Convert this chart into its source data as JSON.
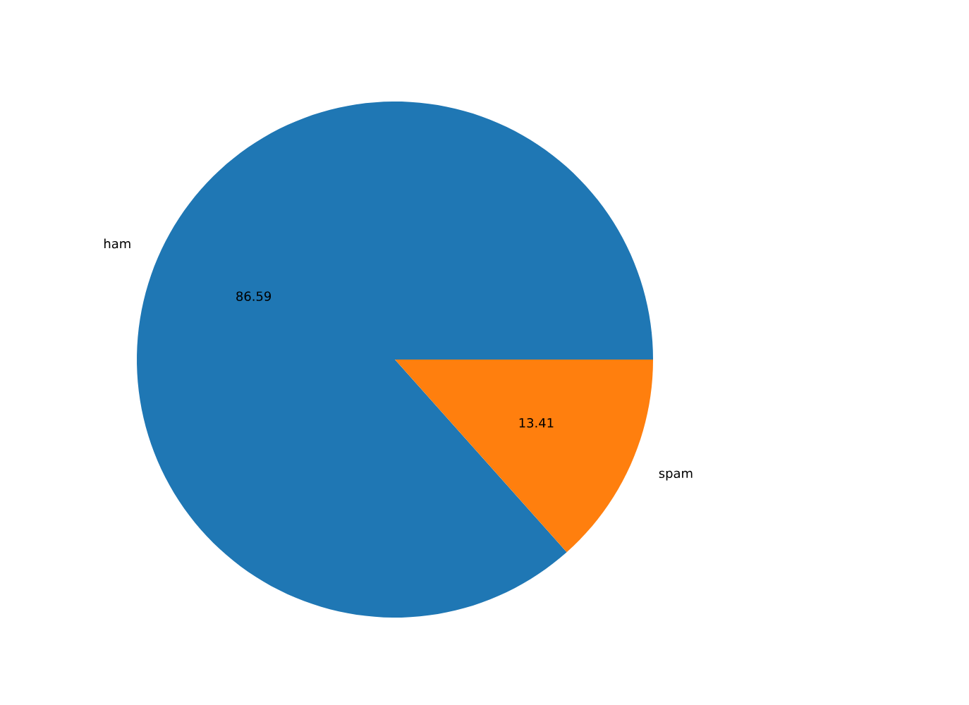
{
  "chart_data": {
    "type": "pie",
    "categories": [
      "ham",
      "spam"
    ],
    "values": [
      86.59,
      13.41
    ],
    "colors": [
      "#1f77b4",
      "#ff7f0e"
    ],
    "data_labels": true
  }
}
